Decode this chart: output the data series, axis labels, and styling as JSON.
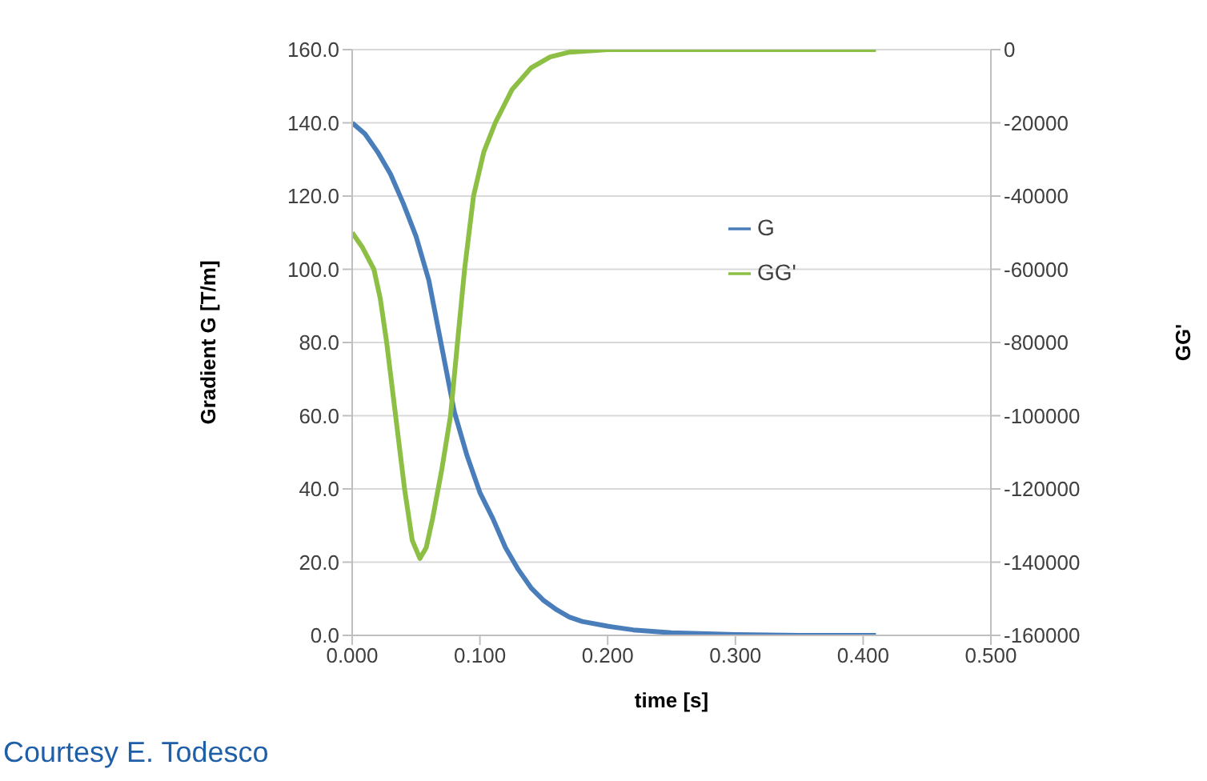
{
  "chart_data": {
    "type": "line",
    "xlabel": "time [s]",
    "ylabel": "Gradient G [T/m]",
    "y2label": "GG'",
    "xlim": [
      0,
      0.5
    ],
    "xticks": [
      {
        "value": 0,
        "label": "0.000"
      },
      {
        "value": 0.1,
        "label": "0.100"
      },
      {
        "value": 0.2,
        "label": "0.200"
      },
      {
        "value": 0.3,
        "label": "0.300"
      },
      {
        "value": 0.4,
        "label": "0.400"
      },
      {
        "value": 0.5,
        "label": "0.500"
      }
    ],
    "ylim": [
      0,
      160
    ],
    "yticks": [
      {
        "value": 0,
        "label": "0.0"
      },
      {
        "value": 20,
        "label": "20.0"
      },
      {
        "value": 40,
        "label": "40.0"
      },
      {
        "value": 60,
        "label": "60.0"
      },
      {
        "value": 80,
        "label": "80.0"
      },
      {
        "value": 100,
        "label": "100.0"
      },
      {
        "value": 120,
        "label": "120.0"
      },
      {
        "value": 140,
        "label": "140.0"
      },
      {
        "value": 160,
        "label": "160.0"
      }
    ],
    "y2lim": [
      -160000,
      0
    ],
    "y2ticks": [
      -160000,
      -140000,
      -120000,
      -100000,
      -80000,
      -60000,
      -40000,
      -20000,
      0
    ],
    "grid": "y",
    "legend": "right",
    "marker": "none",
    "line_style": "solid",
    "annotations": [
      "Courtesy E. Todesco"
    ],
    "series": [
      {
        "name": "G",
        "color": "#4a7ebb",
        "x": [
          0,
          0.01,
          0.02,
          0.03,
          0.04,
          0.05,
          0.06,
          0.07,
          0.08,
          0.09,
          0.1,
          0.11,
          0.12,
          0.13,
          0.14,
          0.15,
          0.16,
          0.17,
          0.18,
          0.2,
          0.22,
          0.25,
          0.3,
          0.35,
          0.41
        ],
        "values": [
          140,
          137,
          132,
          126,
          118,
          109,
          97,
          79,
          61,
          49,
          39,
          32,
          24,
          18,
          13,
          9.5,
          7,
          5,
          3.8,
          2.5,
          1.5,
          0.7,
          0.2,
          0,
          0
        ]
      },
      {
        "name": "GG'",
        "color": "#8cbf44",
        "axis": "y2",
        "x": [
          0,
          0.008,
          0.017,
          0.022,
          0.027,
          0.034,
          0.041,
          0.047,
          0.053,
          0.058,
          0.063,
          0.07,
          0.077,
          0.083,
          0.088,
          0.095,
          0.103,
          0.112,
          0.125,
          0.14,
          0.155,
          0.17,
          0.2,
          0.41
        ],
        "values": [
          -50000,
          -54000,
          -60000,
          -68000,
          -80000,
          -100000,
          -120000,
          -134000,
          -139000,
          -136000,
          -128000,
          -115000,
          -100000,
          -78000,
          -60000,
          -40000,
          -28000,
          -20000,
          -11000,
          -5000,
          -2000,
          -700,
          0,
          0
        ]
      }
    ]
  }
}
